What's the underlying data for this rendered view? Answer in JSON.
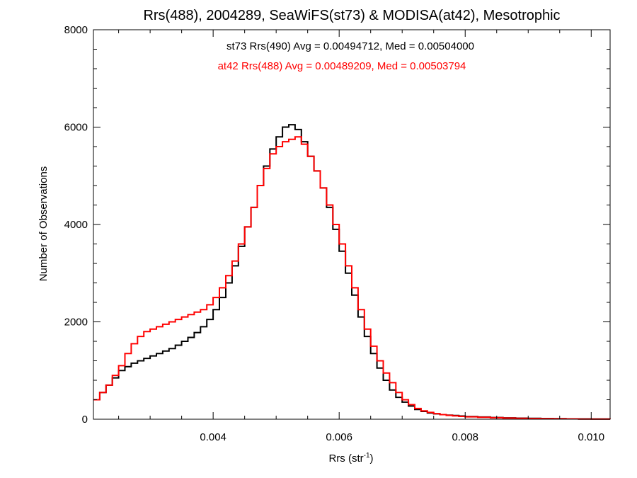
{
  "chart_data": {
    "type": "line",
    "title": "Rrs(488), 2004289, SeaWiFS(st73) & MODISA(at42), Mesotrophic",
    "xlabel": "Rrs (str",
    "xlabel_sup": "-1",
    "xlabel_close": ")",
    "ylabel": "Number of Observations",
    "xlim": [
      0.0021,
      0.0103
    ],
    "ylim": [
      0,
      8000
    ],
    "x_ticks": [
      {
        "value": 0.004,
        "label": "0.004"
      },
      {
        "value": 0.006,
        "label": "0.006"
      },
      {
        "value": 0.008,
        "label": "0.008"
      },
      {
        "value": 0.01,
        "label": "0.010"
      }
    ],
    "y_ticks": [
      {
        "value": 0,
        "label": "0"
      },
      {
        "value": 2000,
        "label": "2000"
      },
      {
        "value": 4000,
        "label": "4000"
      },
      {
        "value": 6000,
        "label": "6000"
      },
      {
        "value": 8000,
        "label": "8000"
      }
    ],
    "grid": false,
    "legend_position": "top-center",
    "series": [
      {
        "name": "st73",
        "label": "st73 Rrs(490) Avg = 0.00494712, Med = 0.00504000",
        "color": "#000000",
        "points": [
          [
            0.0021,
            400
          ],
          [
            0.0022,
            550
          ],
          [
            0.0023,
            700
          ],
          [
            0.0024,
            850
          ],
          [
            0.0025,
            1000
          ],
          [
            0.0026,
            1080
          ],
          [
            0.0027,
            1150
          ],
          [
            0.0028,
            1200
          ],
          [
            0.0029,
            1250
          ],
          [
            0.003,
            1300
          ],
          [
            0.0031,
            1350
          ],
          [
            0.0032,
            1400
          ],
          [
            0.0033,
            1450
          ],
          [
            0.0034,
            1520
          ],
          [
            0.0035,
            1600
          ],
          [
            0.0036,
            1680
          ],
          [
            0.0037,
            1780
          ],
          [
            0.0038,
            1900
          ],
          [
            0.0039,
            2050
          ],
          [
            0.004,
            2250
          ],
          [
            0.0041,
            2500
          ],
          [
            0.0042,
            2800
          ],
          [
            0.0043,
            3150
          ],
          [
            0.0044,
            3550
          ],
          [
            0.0045,
            3950
          ],
          [
            0.0046,
            4350
          ],
          [
            0.0047,
            4800
          ],
          [
            0.0048,
            5200
          ],
          [
            0.0049,
            5550
          ],
          [
            0.005,
            5800
          ],
          [
            0.0051,
            6000
          ],
          [
            0.0052,
            6050
          ],
          [
            0.0053,
            5950
          ],
          [
            0.0054,
            5700
          ],
          [
            0.0055,
            5400
          ],
          [
            0.0056,
            5100
          ],
          [
            0.0057,
            4750
          ],
          [
            0.0058,
            4350
          ],
          [
            0.0059,
            3900
          ],
          [
            0.006,
            3450
          ],
          [
            0.0061,
            3000
          ],
          [
            0.0062,
            2550
          ],
          [
            0.0063,
            2100
          ],
          [
            0.0064,
            1700
          ],
          [
            0.0065,
            1350
          ],
          [
            0.0066,
            1050
          ],
          [
            0.0067,
            800
          ],
          [
            0.0068,
            600
          ],
          [
            0.0069,
            450
          ],
          [
            0.007,
            350
          ],
          [
            0.0071,
            270
          ],
          [
            0.0072,
            200
          ],
          [
            0.0073,
            160
          ],
          [
            0.0074,
            130
          ],
          [
            0.0075,
            110
          ],
          [
            0.0076,
            95
          ],
          [
            0.0077,
            85
          ],
          [
            0.0078,
            75
          ],
          [
            0.0079,
            65
          ],
          [
            0.008,
            55
          ],
          [
            0.0082,
            45
          ],
          [
            0.0084,
            35
          ],
          [
            0.0086,
            28
          ],
          [
            0.0088,
            22
          ],
          [
            0.009,
            17
          ],
          [
            0.0092,
            13
          ],
          [
            0.0094,
            10
          ],
          [
            0.0096,
            8
          ],
          [
            0.0098,
            6
          ],
          [
            0.01,
            5
          ],
          [
            0.0103,
            4
          ]
        ]
      },
      {
        "name": "at42",
        "label": "at42 Rrs(488) Avg = 0.00489209, Med = 0.00503794",
        "color": "#ff0000",
        "points": [
          [
            0.0021,
            400
          ],
          [
            0.0022,
            550
          ],
          [
            0.0023,
            700
          ],
          [
            0.0024,
            900
          ],
          [
            0.0025,
            1100
          ],
          [
            0.0026,
            1350
          ],
          [
            0.0027,
            1550
          ],
          [
            0.0028,
            1700
          ],
          [
            0.0029,
            1800
          ],
          [
            0.003,
            1850
          ],
          [
            0.0031,
            1900
          ],
          [
            0.0032,
            1950
          ],
          [
            0.0033,
            2000
          ],
          [
            0.0034,
            2050
          ],
          [
            0.0035,
            2100
          ],
          [
            0.0036,
            2150
          ],
          [
            0.0037,
            2200
          ],
          [
            0.0038,
            2250
          ],
          [
            0.0039,
            2350
          ],
          [
            0.004,
            2500
          ],
          [
            0.0041,
            2700
          ],
          [
            0.0042,
            2950
          ],
          [
            0.0043,
            3250
          ],
          [
            0.0044,
            3600
          ],
          [
            0.0045,
            3950
          ],
          [
            0.0046,
            4350
          ],
          [
            0.0047,
            4800
          ],
          [
            0.0048,
            5150
          ],
          [
            0.0049,
            5450
          ],
          [
            0.005,
            5600
          ],
          [
            0.0051,
            5700
          ],
          [
            0.0052,
            5750
          ],
          [
            0.0053,
            5800
          ],
          [
            0.0054,
            5650
          ],
          [
            0.0055,
            5400
          ],
          [
            0.0056,
            5100
          ],
          [
            0.0057,
            4750
          ],
          [
            0.0058,
            4400
          ],
          [
            0.0059,
            4000
          ],
          [
            0.006,
            3600
          ],
          [
            0.0061,
            3150
          ],
          [
            0.0062,
            2700
          ],
          [
            0.0063,
            2250
          ],
          [
            0.0064,
            1850
          ],
          [
            0.0065,
            1500
          ],
          [
            0.0066,
            1200
          ],
          [
            0.0067,
            950
          ],
          [
            0.0068,
            750
          ],
          [
            0.0069,
            550
          ],
          [
            0.007,
            400
          ],
          [
            0.0071,
            300
          ],
          [
            0.0072,
            220
          ],
          [
            0.0073,
            170
          ],
          [
            0.0074,
            140
          ],
          [
            0.0075,
            115
          ],
          [
            0.0076,
            95
          ],
          [
            0.0077,
            80
          ],
          [
            0.0078,
            68
          ],
          [
            0.0079,
            58
          ],
          [
            0.008,
            50
          ],
          [
            0.0082,
            40
          ],
          [
            0.0084,
            30
          ],
          [
            0.0086,
            24
          ],
          [
            0.0088,
            18
          ],
          [
            0.009,
            14
          ],
          [
            0.0092,
            11
          ],
          [
            0.0094,
            9
          ],
          [
            0.0096,
            7
          ],
          [
            0.0098,
            5
          ],
          [
            0.01,
            4
          ],
          [
            0.0103,
            3
          ]
        ]
      }
    ]
  }
}
